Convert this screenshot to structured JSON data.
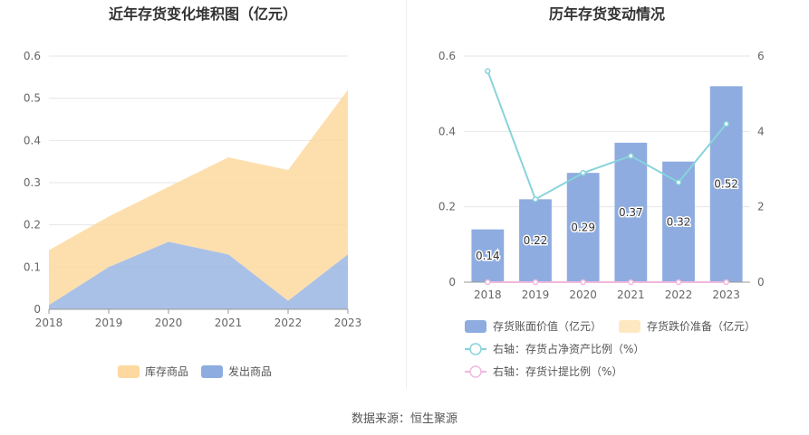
{
  "chart_data": [
    {
      "type": "area",
      "title": "近年存货变化堆积图（亿元）",
      "stacked": true,
      "categories": [
        "2018",
        "2019",
        "2020",
        "2021",
        "2022",
        "2023"
      ],
      "series": [
        {
          "name": "发出商品",
          "values": [
            0.01,
            0.1,
            0.16,
            0.13,
            0.02,
            0.13
          ],
          "color": "#8eacdf"
        },
        {
          "name": "库存商品",
          "values": [
            0.13,
            0.12,
            0.13,
            0.23,
            0.31,
            0.39
          ],
          "color": "#fdd9a0"
        }
      ],
      "ylim": [
        0,
        0.6
      ],
      "yticks": [
        "0",
        "0.1",
        "0.2",
        "0.3",
        "0.4",
        "0.5",
        "0.6"
      ],
      "legend": [
        {
          "label": "库存商品",
          "color": "#fdd9a0"
        },
        {
          "label": "发出商品",
          "color": "#8eacdf"
        }
      ],
      "legend_position": "bottom",
      "grid": true
    },
    {
      "type": "bar",
      "title": "历年存货变动情况",
      "categories": [
        "2018",
        "2019",
        "2020",
        "2021",
        "2022",
        "2023"
      ],
      "series": [
        {
          "name": "存货账面价值（亿元）",
          "axis": "left",
          "type": "bar",
          "values": [
            0.14,
            0.22,
            0.29,
            0.37,
            0.32,
            0.52
          ],
          "labels": [
            "0.14",
            "0.22",
            "0.29",
            "0.37",
            "0.32",
            "0.52"
          ],
          "color": "#8eacdf"
        },
        {
          "name": "存货跌价准备（亿元）",
          "axis": "left",
          "type": "bar",
          "values": [
            0,
            0,
            0,
            0,
            0,
            0
          ],
          "color": "#fde8c2"
        },
        {
          "name": "右轴：存货占净资产比例（%）",
          "axis": "right",
          "type": "line",
          "values": [
            5.6,
            2.2,
            2.9,
            3.35,
            2.65,
            4.2
          ],
          "color": "#88d3db"
        },
        {
          "name": "右轴：存货计提比例（%）",
          "axis": "right",
          "type": "line",
          "values": [
            0,
            0,
            0,
            0,
            0,
            0
          ],
          "color": "#f0b8dc"
        }
      ],
      "ylim_left": [
        0,
        0.6
      ],
      "yticks_left": [
        "0",
        "0.2",
        "0.4",
        "0.6"
      ],
      "ylim_right": [
        0,
        6
      ],
      "yticks_right": [
        "0",
        "2",
        "4",
        "6"
      ],
      "legend_position": "bottom",
      "grid": true
    }
  ],
  "footer": {
    "source": "数据来源：恒生聚源"
  }
}
